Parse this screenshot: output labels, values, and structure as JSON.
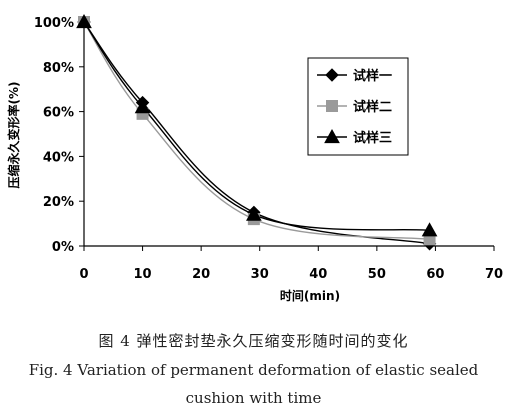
{
  "chart_data": {
    "type": "line",
    "xlabel": "时间(min)",
    "ylabel": "压缩永久变形率(%)",
    "xlim": [
      0,
      70
    ],
    "ylim": [
      0,
      100
    ],
    "x_ticks": [
      "0",
      "10",
      "20",
      "30",
      "40",
      "50",
      "60",
      "70"
    ],
    "y_ticks": [
      "0%",
      "20%",
      "40%",
      "60%",
      "80%",
      "100%"
    ],
    "legend_position": "right",
    "grid": false,
    "series": [
      {
        "name": "试样一",
        "marker": "diamond",
        "color": "#000000",
        "x": [
          0,
          10,
          29,
          59
        ],
        "y": [
          100,
          64,
          15,
          1
        ]
      },
      {
        "name": "试样二",
        "marker": "square",
        "color": "#9a9a9a",
        "x": [
          0,
          10,
          29,
          59
        ],
        "y": [
          100,
          59,
          12,
          3
        ]
      },
      {
        "name": "试样三",
        "marker": "triangle",
        "color": "#000000",
        "x": [
          0,
          10,
          29,
          59
        ],
        "y": [
          100,
          62,
          14,
          7
        ]
      }
    ]
  },
  "caption": {
    "cn": "图 4   弹性密封垫永久压缩变形随时间的变化",
    "en_line1": "Fig. 4    Variation of permanent deformation of elastic sealed",
    "en_line2": "cushion with time"
  }
}
